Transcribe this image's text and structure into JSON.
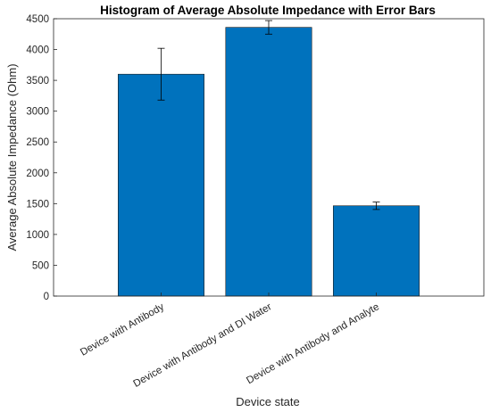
{
  "chart_data": {
    "type": "bar",
    "title": "Histogram of Average Absolute Impedance with Error Bars",
    "xlabel": "Device state",
    "ylabel": "Average Absolute Impedance (Ohm)",
    "categories": [
      "Device with Antibody",
      "Device with Antibody and DI Water",
      "Device with Antibody and Analyte"
    ],
    "values": [
      3600,
      4360,
      1465
    ],
    "errors": [
      420,
      110,
      60
    ],
    "ylim": [
      0,
      4500
    ],
    "yticks": [
      "0",
      "500",
      "1000",
      "1500",
      "2000",
      "2500",
      "3000",
      "3500",
      "4000",
      "4500"
    ],
    "bar_color": "#0072BD",
    "grid": false,
    "legend": "none"
  }
}
